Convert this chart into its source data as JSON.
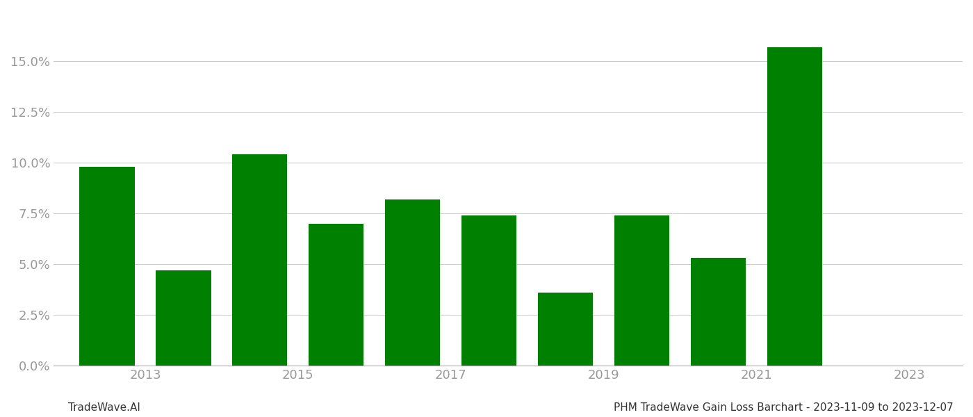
{
  "bar_data": [
    {
      "x": 0,
      "value": 0.098
    },
    {
      "x": 1,
      "value": 0.047
    },
    {
      "x": 2,
      "value": 0.104
    },
    {
      "x": 3,
      "value": 0.07
    },
    {
      "x": 4,
      "value": 0.082
    },
    {
      "x": 5,
      "value": 0.074
    },
    {
      "x": 6,
      "value": 0.036
    },
    {
      "x": 7,
      "value": 0.074
    },
    {
      "x": 8,
      "value": 0.053
    },
    {
      "x": 9,
      "value": 0.157
    }
  ],
  "bar_color": "#008000",
  "background_color": "#ffffff",
  "grid_color": "#cccccc",
  "tick_color": "#999999",
  "ylim": [
    0,
    0.175
  ],
  "yticks": [
    0.0,
    0.025,
    0.05,
    0.075,
    0.1,
    0.125,
    0.15
  ],
  "xtick_labels": [
    "2013",
    "2015",
    "2017",
    "2019",
    "2021",
    "2023"
  ],
  "xtick_positions": [
    0.5,
    2.5,
    4.5,
    6.5,
    8.5,
    10.5
  ],
  "xlim": [
    -0.7,
    11.2
  ],
  "footer_left": "TradeWave.AI",
  "footer_right": "PHM TradeWave Gain Loss Barchart - 2023-11-09 to 2023-12-07",
  "tick_fontsize": 13,
  "footer_fontsize": 11
}
